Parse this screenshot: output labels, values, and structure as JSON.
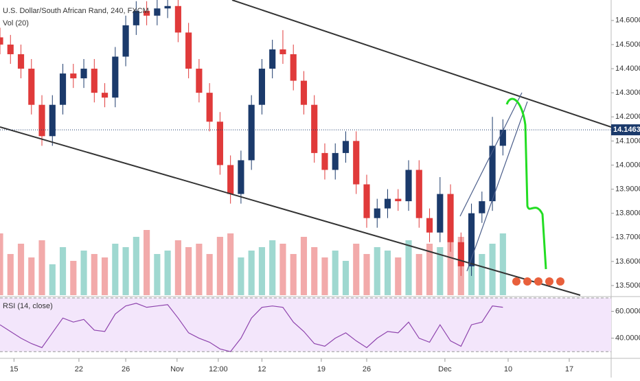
{
  "chart_data": [
    {
      "type": "candlestick",
      "title": "U.S. Dollar/South African Rand, 240, FXCM",
      "volume_title": "Vol (20)",
      "x": [
        0,
        3,
        6,
        9,
        12,
        15,
        18,
        21,
        24,
        27,
        30,
        33,
        36,
        39,
        42,
        45,
        48,
        51,
        54,
        57,
        60,
        63,
        66,
        69,
        72,
        75,
        78,
        81,
        84,
        87,
        90,
        93,
        96,
        99,
        102,
        105,
        108,
        111,
        114,
        117,
        120,
        123,
        126,
        129,
        132,
        135,
        138,
        141,
        144
      ],
      "open": [
        14.53,
        14.5,
        14.46,
        14.4,
        14.25,
        14.12,
        14.25,
        14.38,
        14.36,
        14.4,
        14.3,
        14.28,
        14.45,
        14.58,
        14.64,
        14.62,
        14.65,
        14.66,
        14.55,
        14.4,
        14.3,
        14.18,
        14.0,
        13.88,
        14.02,
        14.25,
        14.4,
        14.48,
        14.46,
        14.35,
        14.25,
        14.05,
        13.98,
        14.05,
        14.1,
        13.92,
        13.78,
        13.82,
        13.86,
        13.85,
        13.98,
        13.78,
        13.72,
        13.88,
        13.68,
        13.58,
        13.8,
        13.85,
        14.08
      ],
      "high": [
        14.57,
        14.54,
        14.5,
        14.44,
        14.29,
        14.29,
        14.42,
        14.42,
        14.44,
        14.44,
        14.34,
        14.49,
        14.62,
        14.68,
        14.68,
        14.69,
        14.7,
        14.7,
        14.59,
        14.44,
        14.34,
        14.22,
        14.04,
        14.06,
        14.29,
        14.44,
        14.52,
        14.56,
        14.5,
        14.39,
        14.29,
        14.09,
        14.09,
        14.14,
        14.14,
        13.96,
        13.86,
        13.9,
        13.9,
        14.02,
        14.02,
        13.82,
        13.95,
        13.92,
        13.72,
        13.84,
        13.89,
        14.2,
        14.19
      ],
      "low": [
        14.46,
        14.42,
        14.36,
        14.21,
        14.08,
        14.08,
        14.21,
        14.32,
        14.32,
        14.26,
        14.24,
        14.24,
        14.41,
        14.54,
        14.58,
        14.58,
        14.61,
        14.51,
        14.36,
        14.26,
        14.14,
        13.96,
        13.84,
        13.84,
        13.98,
        14.21,
        14.36,
        14.42,
        14.31,
        14.21,
        14.01,
        13.94,
        13.94,
        14.01,
        13.88,
        13.74,
        13.74,
        13.78,
        13.81,
        13.81,
        13.74,
        13.68,
        13.68,
        13.64,
        13.54,
        13.54,
        13.76,
        13.81,
        14.04
      ],
      "close": [
        14.5,
        14.46,
        14.4,
        14.25,
        14.12,
        14.25,
        14.38,
        14.36,
        14.4,
        14.3,
        14.28,
        14.45,
        14.58,
        14.64,
        14.62,
        14.65,
        14.66,
        14.55,
        14.4,
        14.3,
        14.18,
        14.0,
        13.88,
        14.02,
        14.25,
        14.4,
        14.48,
        14.46,
        14.35,
        14.25,
        14.05,
        13.98,
        14.05,
        14.1,
        13.92,
        13.78,
        13.82,
        13.86,
        13.85,
        13.98,
        13.78,
        13.72,
        13.88,
        13.68,
        13.58,
        13.8,
        13.85,
        14.08,
        14.1463
      ],
      "volume": [
        90,
        60,
        75,
        55,
        80,
        45,
        70,
        50,
        65,
        60,
        55,
        75,
        70,
        85,
        95,
        60,
        65,
        80,
        70,
        75,
        60,
        85,
        90,
        55,
        65,
        70,
        80,
        75,
        60,
        85,
        70,
        55,
        65,
        50,
        75,
        60,
        70,
        65,
        55,
        80,
        60,
        75,
        70,
        80,
        85,
        65,
        60,
        75,
        90
      ],
      "up_color": "#1b3a6b",
      "down_color": "#e03a3a",
      "volume_up_color": "#9fd8d0",
      "volume_down_color": "#f2aaaa",
      "xlim": [
        0,
        175
      ],
      "ylim": [
        13.46,
        14.685
      ],
      "volume_ylim": [
        0,
        100
      ],
      "xticks": [
        {
          "value": 4,
          "label": "15"
        },
        {
          "value": 22.6,
          "label": "22"
        },
        {
          "value": 36,
          "label": "26"
        },
        {
          "value": 50.7,
          "label": "Nov"
        },
        {
          "value": 62.5,
          "label": "12:00"
        },
        {
          "value": 75,
          "label": "12"
        },
        {
          "value": 92,
          "label": "19"
        },
        {
          "value": 105,
          "label": "26"
        },
        {
          "value": 127.4,
          "label": "Dec"
        },
        {
          "value": 145.5,
          "label": "10"
        },
        {
          "value": 163,
          "label": "17"
        }
      ],
      "yticks": [
        {
          "value": 13.5,
          "label": "13.50000"
        },
        {
          "value": 13.6,
          "label": "13.60000"
        },
        {
          "value": 13.7,
          "label": "13.70000"
        },
        {
          "value": 13.8,
          "label": "13.80000"
        },
        {
          "value": 13.9,
          "label": "13.90000"
        },
        {
          "value": 14.0,
          "label": "14.00000"
        },
        {
          "value": 14.1,
          "label": "14.10000"
        },
        {
          "value": 14.2,
          "label": "14.20000"
        },
        {
          "value": 14.3,
          "label": "14.30000"
        },
        {
          "value": 14.4,
          "label": "14.40000"
        },
        {
          "value": 14.5,
          "label": "14.50000"
        },
        {
          "value": 14.6,
          "label": "14.60000"
        }
      ],
      "last_price": {
        "value": 14.1463,
        "label": "14.14630"
      },
      "last_price_color": "#1b3a6b"
    },
    {
      "type": "line",
      "title": "RSI (14, close)",
      "color": "#8e44ad",
      "band_color": "#f3e6fb",
      "x": [
        0,
        3,
        6,
        9,
        12,
        15,
        18,
        21,
        24,
        27,
        30,
        33,
        36,
        39,
        42,
        45,
        48,
        51,
        54,
        57,
        60,
        63,
        66,
        69,
        72,
        75,
        78,
        81,
        84,
        87,
        90,
        93,
        96,
        99,
        102,
        105,
        108,
        111,
        114,
        117,
        120,
        123,
        126,
        129,
        132,
        135,
        138,
        141,
        144
      ],
      "values": [
        50,
        45,
        40,
        36,
        33,
        44,
        55,
        52,
        54,
        46,
        45,
        58,
        64,
        66,
        63,
        64,
        65,
        55,
        44,
        40,
        37,
        32,
        30,
        40,
        55,
        63,
        64,
        63,
        52,
        45,
        36,
        34,
        40,
        44,
        38,
        33,
        40,
        45,
        44,
        52,
        40,
        37,
        50,
        38,
        34,
        50,
        52,
        64,
        63
      ],
      "band": [
        30,
        70
      ],
      "ylim": [
        25,
        71
      ],
      "yticks": [
        {
          "value": 40,
          "label": "40.0000"
        },
        {
          "value": 60,
          "label": "60.0000"
        }
      ]
    }
  ]
}
